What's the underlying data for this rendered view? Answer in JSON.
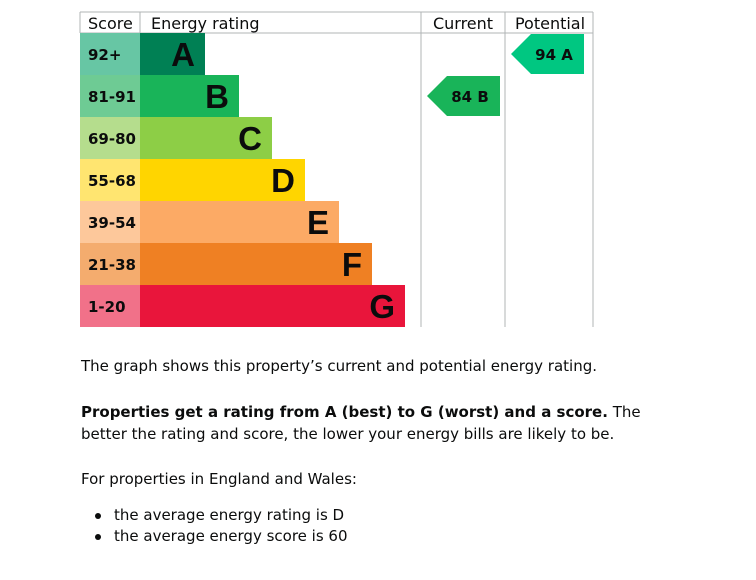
{
  "chart_data": {
    "type": "epc_rating",
    "headers": {
      "score": "Score",
      "rating": "Energy rating",
      "current": "Current",
      "potential": "Potential"
    },
    "bands": [
      {
        "letter": "A",
        "range": "92+",
        "color": "#008054",
        "score_bg": "#67c6a4"
      },
      {
        "letter": "B",
        "range": "81-91",
        "color": "#19b459",
        "score_bg": "#6ecb94"
      },
      {
        "letter": "C",
        "range": "69-80",
        "color": "#8dce46",
        "score_bg": "#b5dd8d"
      },
      {
        "letter": "D",
        "range": "55-68",
        "color": "#ffd500",
        "score_bg": "#ffe570"
      },
      {
        "letter": "E",
        "range": "39-54",
        "color": "#fcaa65",
        "score_bg": "#fdc89b"
      },
      {
        "letter": "F",
        "range": "21-38",
        "color": "#ef8023",
        "score_bg": "#f4ac6e"
      },
      {
        "letter": "G",
        "range": "1-20",
        "color": "#e9153b",
        "score_bg": "#f17189"
      }
    ],
    "current": {
      "score": 84,
      "letter": "B",
      "label": "84 B",
      "color": "#19b459"
    },
    "potential": {
      "score": 94,
      "letter": "A",
      "label": "94 A",
      "color": "#00c781"
    }
  },
  "text": {
    "p1": "The graph shows this property’s current and potential energy rating.",
    "p2_bold": "Properties get a rating from A (best) to G (worst) and a score.",
    "p2_rest": " The better the rating and score, the lower your energy bills are likely to be.",
    "p3": "For properties in England and Wales:",
    "bullets": [
      "the average energy rating is D",
      "the average energy score is 60"
    ]
  }
}
